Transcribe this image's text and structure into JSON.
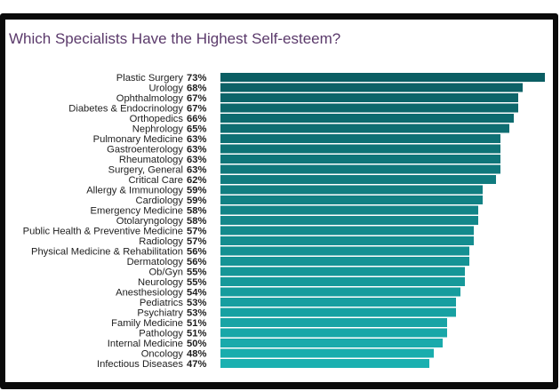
{
  "chart_data": {
    "type": "bar",
    "orientation": "horizontal",
    "title": "Which Specialists Have the Highest Self-esteem?",
    "value_suffix": "%",
    "xlim": [
      0,
      73
    ],
    "grid": false,
    "colors": {
      "start": "#0b5e63",
      "end": "#1ab0b0",
      "title": "#5b3a6b"
    },
    "categories": [
      "Plastic Surgery",
      "Urology",
      "Ophthalmology",
      "Diabetes & Endocrinology",
      "Orthopedics",
      "Nephrology",
      "Pulmonary Medicine",
      "Gastroenterology",
      "Rheumatology",
      "Surgery, General",
      "Critical Care",
      "Allergy & Immunology",
      "Cardiology",
      "Emergency Medicine",
      "Otolaryngology",
      "Public Health & Preventive Medicine",
      "Radiology",
      "Physical Medicine & Rehabilitation",
      "Dermatology",
      "Ob/Gyn",
      "Neurology",
      "Anesthesiology",
      "Pediatrics",
      "Psychiatry",
      "Family Medicine",
      "Pathology",
      "Internal Medicine",
      "Oncology",
      "Infectious Diseases"
    ],
    "values": [
      73,
      68,
      67,
      67,
      66,
      65,
      63,
      63,
      63,
      63,
      62,
      59,
      59,
      58,
      58,
      57,
      57,
      56,
      56,
      55,
      55,
      54,
      53,
      53,
      51,
      51,
      50,
      48,
      47
    ]
  }
}
